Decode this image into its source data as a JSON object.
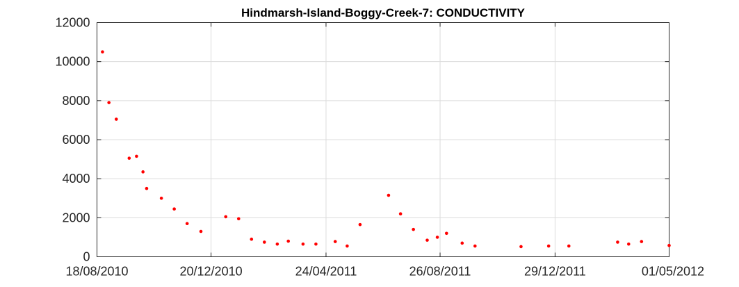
{
  "chart_data": {
    "type": "scatter",
    "title": "Hindmarsh-Island-Boggy-Creek-7: CONDUCTIVITY",
    "xlabel": "",
    "ylabel": "",
    "x_axis_type": "date",
    "xlim": [
      "2010-08-18",
      "2012-05-01"
    ],
    "ylim": [
      0,
      12000
    ],
    "x_ticks": [
      "2010-08-18",
      "2010-12-20",
      "2011-04-24",
      "2011-08-26",
      "2011-12-29",
      "2012-05-01"
    ],
    "x_tick_labels": [
      "18/08/2010",
      "20/12/2010",
      "24/04/2011",
      "26/08/2011",
      "29/12/2011",
      "01/05/2012"
    ],
    "y_ticks": [
      0,
      2000,
      4000,
      6000,
      8000,
      10000,
      12000
    ],
    "y_tick_labels": [
      "0",
      "2000",
      "4000",
      "6000",
      "8000",
      "10000",
      "12000"
    ],
    "grid": true,
    "marker_color": "#ff0000",
    "series": [
      {
        "points": [
          {
            "x": "2010-08-24",
            "y": 10500
          },
          {
            "x": "2010-08-31",
            "y": 7900
          },
          {
            "x": "2010-09-08",
            "y": 7050
          },
          {
            "x": "2010-09-22",
            "y": 5050
          },
          {
            "x": "2010-09-30",
            "y": 5150
          },
          {
            "x": "2010-10-07",
            "y": 4350
          },
          {
            "x": "2010-10-11",
            "y": 3500
          },
          {
            "x": "2010-10-27",
            "y": 3000
          },
          {
            "x": "2010-11-10",
            "y": 2450
          },
          {
            "x": "2010-11-24",
            "y": 1700
          },
          {
            "x": "2010-12-09",
            "y": 1300
          },
          {
            "x": "2011-01-05",
            "y": 2050
          },
          {
            "x": "2011-01-19",
            "y": 1950
          },
          {
            "x": "2011-02-02",
            "y": 900
          },
          {
            "x": "2011-02-16",
            "y": 750
          },
          {
            "x": "2011-03-02",
            "y": 650
          },
          {
            "x": "2011-03-14",
            "y": 800
          },
          {
            "x": "2011-03-30",
            "y": 650
          },
          {
            "x": "2011-04-13",
            "y": 650
          },
          {
            "x": "2011-05-04",
            "y": 780
          },
          {
            "x": "2011-05-17",
            "y": 550
          },
          {
            "x": "2011-05-31",
            "y": 1650
          },
          {
            "x": "2011-07-01",
            "y": 3150
          },
          {
            "x": "2011-07-14",
            "y": 2200
          },
          {
            "x": "2011-07-28",
            "y": 1400
          },
          {
            "x": "2011-08-12",
            "y": 850
          },
          {
            "x": "2011-08-23",
            "y": 1000
          },
          {
            "x": "2011-09-02",
            "y": 1200
          },
          {
            "x": "2011-09-19",
            "y": 700
          },
          {
            "x": "2011-10-03",
            "y": 550
          },
          {
            "x": "2011-11-22",
            "y": 520
          },
          {
            "x": "2011-12-22",
            "y": 550
          },
          {
            "x": "2012-01-13",
            "y": 550
          },
          {
            "x": "2012-03-06",
            "y": 750
          },
          {
            "x": "2012-03-18",
            "y": 650
          },
          {
            "x": "2012-04-01",
            "y": 780
          },
          {
            "x": "2012-05-01",
            "y": 580
          }
        ]
      }
    ]
  }
}
